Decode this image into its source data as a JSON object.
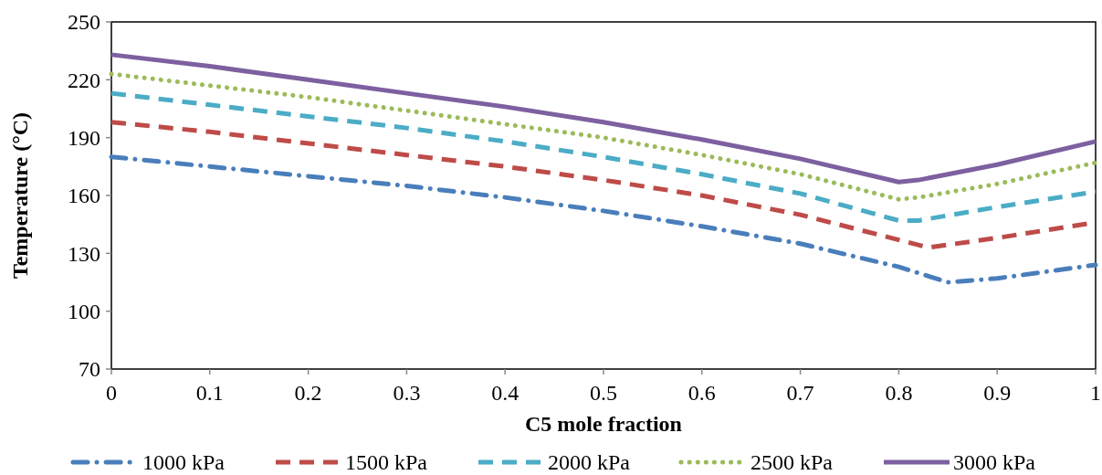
{
  "chart_data": {
    "type": "line",
    "xlabel": "C5 mole fraction",
    "ylabel": "Temperature (°C)",
    "xlim": [
      0,
      1
    ],
    "xticks": [
      0,
      0.1,
      0.2,
      0.3,
      0.4,
      0.5,
      0.6,
      0.7,
      0.8,
      0.9,
      1
    ],
    "ylim": [
      70,
      250
    ],
    "yticks": [
      70,
      100,
      130,
      160,
      190,
      220,
      250
    ],
    "grid": false,
    "legend": "bottom",
    "marker": "none",
    "series": [
      {
        "name": "1000 kPa",
        "color": "#4a7ebb",
        "line_style": "dashdot",
        "x": [
          0,
          0.1,
          0.2,
          0.3,
          0.4,
          0.5,
          0.6,
          0.7,
          0.8,
          0.85,
          0.9,
          1
        ],
        "values": [
          180,
          175,
          170,
          165,
          159,
          152,
          144,
          135,
          123,
          115,
          117,
          124
        ]
      },
      {
        "name": "1500 kPa",
        "color": "#be4b48",
        "line_style": "dashed",
        "x": [
          0,
          0.1,
          0.2,
          0.3,
          0.4,
          0.5,
          0.6,
          0.7,
          0.8,
          0.83,
          0.9,
          1
        ],
        "values": [
          198,
          193,
          187,
          181,
          175,
          168,
          160,
          150,
          137,
          133,
          138,
          146
        ]
      },
      {
        "name": "2000 kPa",
        "color": "#4bacc6",
        "line_style": "dashed",
        "x": [
          0,
          0.1,
          0.2,
          0.3,
          0.4,
          0.5,
          0.6,
          0.7,
          0.8,
          0.82,
          0.9,
          1
        ],
        "values": [
          213,
          207,
          201,
          195,
          188,
          180,
          171,
          161,
          147,
          147,
          154,
          162
        ]
      },
      {
        "name": "2500 kPa",
        "color": "#9bbb59",
        "line_style": "dotted",
        "x": [
          0,
          0.1,
          0.2,
          0.3,
          0.4,
          0.5,
          0.6,
          0.7,
          0.8,
          0.82,
          0.9,
          1
        ],
        "values": [
          223,
          217,
          211,
          204,
          197,
          190,
          181,
          171,
          158,
          159,
          166,
          177
        ]
      },
      {
        "name": "3000 kPa",
        "color": "#7d60a0",
        "line_style": "solid",
        "x": [
          0,
          0.1,
          0.2,
          0.3,
          0.4,
          0.5,
          0.6,
          0.7,
          0.8,
          0.82,
          0.9,
          1
        ],
        "values": [
          233,
          227,
          220,
          213,
          206,
          198,
          189,
          179,
          167,
          168,
          176,
          188
        ]
      }
    ]
  }
}
